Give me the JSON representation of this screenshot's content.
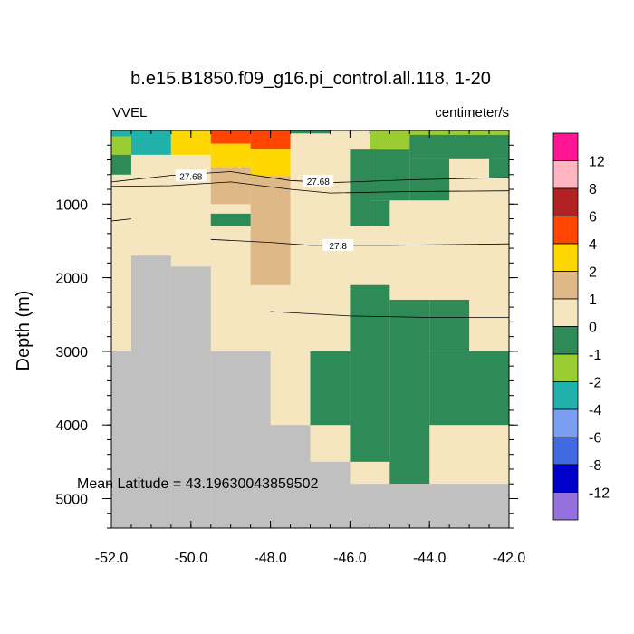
{
  "chart_data": {
    "type": "heatmap",
    "title": "b.e15.B1850.f09_g16.pi_control.all.118, 1-20",
    "left_label": "VVEL",
    "right_label": "centimeter/s",
    "ylabel": "Depth (m)",
    "xlabel": "",
    "xlim": [
      -52.0,
      -42.0
    ],
    "ylim": [
      5400,
      0
    ],
    "x_ticks": [
      "-52.0",
      "-50.0",
      "-48.0",
      "-46.0",
      "-44.0",
      "-42.0"
    ],
    "y_ticks": [
      "1000",
      "2000",
      "3000",
      "4000",
      "5000"
    ],
    "annotation": "Mean Latitude = 43.19630043859502",
    "colorbar": {
      "labels": [
        "12",
        "8",
        "6",
        "4",
        "2",
        "1",
        "0",
        "-1",
        "-2",
        "-4",
        "-6",
        "-8",
        "-12"
      ],
      "colors": [
        "#ff1493",
        "#ffb6c1",
        "#b22222",
        "#ff4500",
        "#ffd700",
        "#deb887",
        "#f5e6c0",
        "#2e8b57",
        "#9acd32",
        "#20b2aa",
        "#7b9ff0",
        "#4169e1",
        "#0000cd",
        "#9370db"
      ]
    },
    "contour_labels": [
      "27.68",
      "27.68",
      "27.8"
    ],
    "categories_legend": {
      "land": "#c0c0c0",
      "pos2": "#ffd700",
      "pos4": "#ff4500",
      "pos1": "#deb887",
      "zero": "#f5e6c0",
      "neg1": "#2e8b57",
      "neg1b": "#9acd32",
      "neg2": "#20b2aa"
    },
    "cells": [
      {
        "x": [
          -52.0,
          -42.0
        ],
        "y": [
          0,
          5400
        ],
        "c": "zero"
      },
      {
        "x": [
          -52.0,
          -51.5
        ],
        "y": [
          80,
          330
        ],
        "c": "neg1b"
      },
      {
        "x": [
          -52.0,
          -51.5
        ],
        "y": [
          330,
          600
        ],
        "c": "neg1"
      },
      {
        "x": [
          -51.5,
          -50.5
        ],
        "y": [
          80,
          330
        ],
        "c": "neg2"
      },
      {
        "x": [
          -52.0,
          -50.5
        ],
        "y": [
          0,
          80
        ],
        "c": "neg2"
      },
      {
        "x": [
          -50.5,
          -49.5
        ],
        "y": [
          0,
          330
        ],
        "c": "pos2"
      },
      {
        "x": [
          -49.5,
          -48.5
        ],
        "y": [
          0,
          180
        ],
        "c": "pos4"
      },
      {
        "x": [
          -49.5,
          -48.5
        ],
        "y": [
          180,
          500
        ],
        "c": "pos2"
      },
      {
        "x": [
          -48.5,
          -47.5
        ],
        "y": [
          0,
          250
        ],
        "c": "pos4"
      },
      {
        "x": [
          -48.5,
          -47.5
        ],
        "y": [
          250,
          620
        ],
        "c": "pos2"
      },
      {
        "x": [
          -47.5,
          -46.5
        ],
        "y": [
          0,
          40
        ],
        "c": "neg1"
      },
      {
        "x": [
          -45.5,
          -44.5
        ],
        "y": [
          0,
          260
        ],
        "c": "neg1b"
      },
      {
        "x": [
          -44.5,
          -43.5
        ],
        "y": [
          0,
          80
        ],
        "c": "neg1b"
      },
      {
        "x": [
          -43.5,
          -42.0
        ],
        "y": [
          0,
          60
        ],
        "c": "neg1b"
      },
      {
        "x": [
          -44.5,
          -42.0
        ],
        "y": [
          60,
          380
        ],
        "c": "neg1"
      },
      {
        "x": [
          -45.5,
          -44.5
        ],
        "y": [
          260,
          950
        ],
        "c": "neg1"
      },
      {
        "x": [
          -44.5,
          -43.5
        ],
        "y": [
          380,
          950
        ],
        "c": "neg1"
      },
      {
        "x": [
          -46.0,
          -45.5
        ],
        "y": [
          260,
          1300
        ],
        "c": "neg1"
      },
      {
        "x": [
          -45.5,
          -45.0
        ],
        "y": [
          950,
          1300
        ],
        "c": "neg1"
      },
      {
        "x": [
          -43.5,
          -42.5
        ],
        "y": [
          380,
          650
        ],
        "c": "zero"
      },
      {
        "x": [
          -42.5,
          -42.0
        ],
        "y": [
          380,
          650
        ],
        "c": "neg1"
      },
      {
        "x": [
          -49.5,
          -48.5
        ],
        "y": [
          500,
          1000
        ],
        "c": "pos1"
      },
      {
        "x": [
          -48.5,
          -47.5
        ],
        "y": [
          620,
          2100
        ],
        "c": "pos1"
      },
      {
        "x": [
          -49.5,
          -48.5
        ],
        "y": [
          1130,
          1300
        ],
        "c": "neg1"
      },
      {
        "x": [
          -46.0,
          -45.0
        ],
        "y": [
          2100,
          4500
        ],
        "c": "neg1"
      },
      {
        "x": [
          -45.0,
          -44.0
        ],
        "y": [
          2300,
          4800
        ],
        "c": "neg1"
      },
      {
        "x": [
          -44.0,
          -43.0
        ],
        "y": [
          2300,
          3000
        ],
        "c": "neg1"
      },
      {
        "x": [
          -44.0,
          -42.0
        ],
        "y": [
          3000,
          4000
        ],
        "c": "neg1"
      },
      {
        "x": [
          -47.0,
          -46.0
        ],
        "y": [
          3000,
          4000
        ],
        "c": "neg1"
      },
      {
        "x": [
          -51.5,
          -50.5
        ],
        "y": [
          1700,
          5400
        ],
        "c": "land"
      },
      {
        "x": [
          -52.0,
          -51.5
        ],
        "y": [
          3000,
          5400
        ],
        "c": "land"
      },
      {
        "x": [
          -50.5,
          -49.5
        ],
        "y": [
          1850,
          5400
        ],
        "c": "land"
      },
      {
        "x": [
          -49.5,
          -48.0
        ],
        "y": [
          3000,
          5400
        ],
        "c": "land"
      },
      {
        "x": [
          -48.0,
          -47.0
        ],
        "y": [
          4000,
          5400
        ],
        "c": "land"
      },
      {
        "x": [
          -47.0,
          -46.0
        ],
        "y": [
          4500,
          5400
        ],
        "c": "land"
      },
      {
        "x": [
          -46.0,
          -42.0
        ],
        "y": [
          4800,
          5400
        ],
        "c": "land"
      }
    ],
    "contours": [
      {
        "pts": [
          [
            -52.0,
            700
          ],
          [
            -50.5,
            610
          ],
          [
            -49.0,
            560
          ],
          [
            -47.5,
            680
          ],
          [
            -46.5,
            710
          ],
          [
            -44.5,
            670
          ],
          [
            -42.0,
            640
          ]
        ]
      },
      {
        "pts": [
          [
            -52.0,
            760
          ],
          [
            -50.5,
            750
          ],
          [
            -49.0,
            700
          ],
          [
            -47.5,
            800
          ],
          [
            -46.5,
            850
          ],
          [
            -44.5,
            830
          ],
          [
            -42.0,
            820
          ]
        ]
      },
      {
        "pts": [
          [
            -52.0,
            1230
          ],
          [
            -51.5,
            1200
          ]
        ]
      },
      {
        "pts": [
          [
            -49.5,
            1480
          ],
          [
            -48.0,
            1520
          ],
          [
            -47.0,
            1560
          ],
          [
            -45.0,
            1560
          ],
          [
            -42.0,
            1540
          ]
        ]
      },
      {
        "pts": [
          [
            -48.0,
            2460
          ],
          [
            -46.0,
            2520
          ],
          [
            -44.0,
            2540
          ],
          [
            -42.0,
            2540
          ]
        ]
      }
    ]
  }
}
